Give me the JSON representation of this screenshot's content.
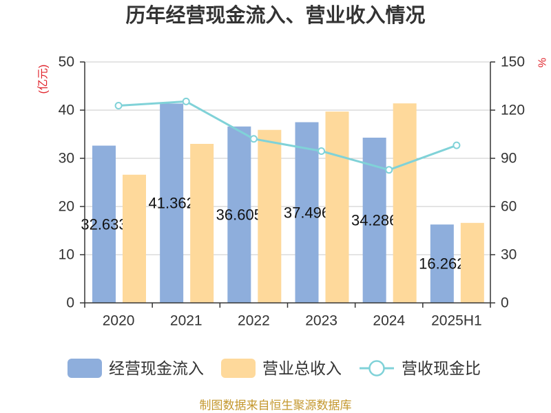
{
  "footer": "制图数据来自恒生聚源数据库",
  "colors": {
    "axis_title": "#e0222a",
    "footer": "#c4982f",
    "text": "#333333",
    "grid": "#c8c8c8"
  },
  "chart_data": {
    "type": "bar",
    "title": "历年经营现金流入、营业收入情况",
    "categories": [
      "2020",
      "2021",
      "2022",
      "2023",
      "2024",
      "2025H1"
    ],
    "y_left": {
      "label": "(亿元)",
      "range": [
        0,
        50
      ],
      "ticks": [
        0,
        10,
        20,
        30,
        40,
        50
      ]
    },
    "y_right": {
      "label": "%",
      "range": [
        0,
        150
      ],
      "ticks": [
        0,
        30,
        60,
        90,
        120,
        150
      ]
    },
    "series": [
      {
        "name": "经营现金流入",
        "type": "bar",
        "axis": "left",
        "color": "#8eaedc",
        "values": [
          32.633,
          41.362,
          36.605,
          37.496,
          34.286,
          16.262
        ],
        "data_labels": true
      },
      {
        "name": "营业总收入",
        "type": "bar",
        "axis": "left",
        "color": "#fed99b",
        "values": [
          26.6,
          33.0,
          35.9,
          39.7,
          41.4,
          16.6
        ],
        "data_labels": false
      },
      {
        "name": "营收现金比",
        "type": "line",
        "axis": "right",
        "color": "#80d2d8",
        "values": [
          122.8,
          125.4,
          102.1,
          94.5,
          82.8,
          98.1
        ],
        "marker": "circle"
      }
    ],
    "grid": true,
    "legend": "bottom"
  }
}
